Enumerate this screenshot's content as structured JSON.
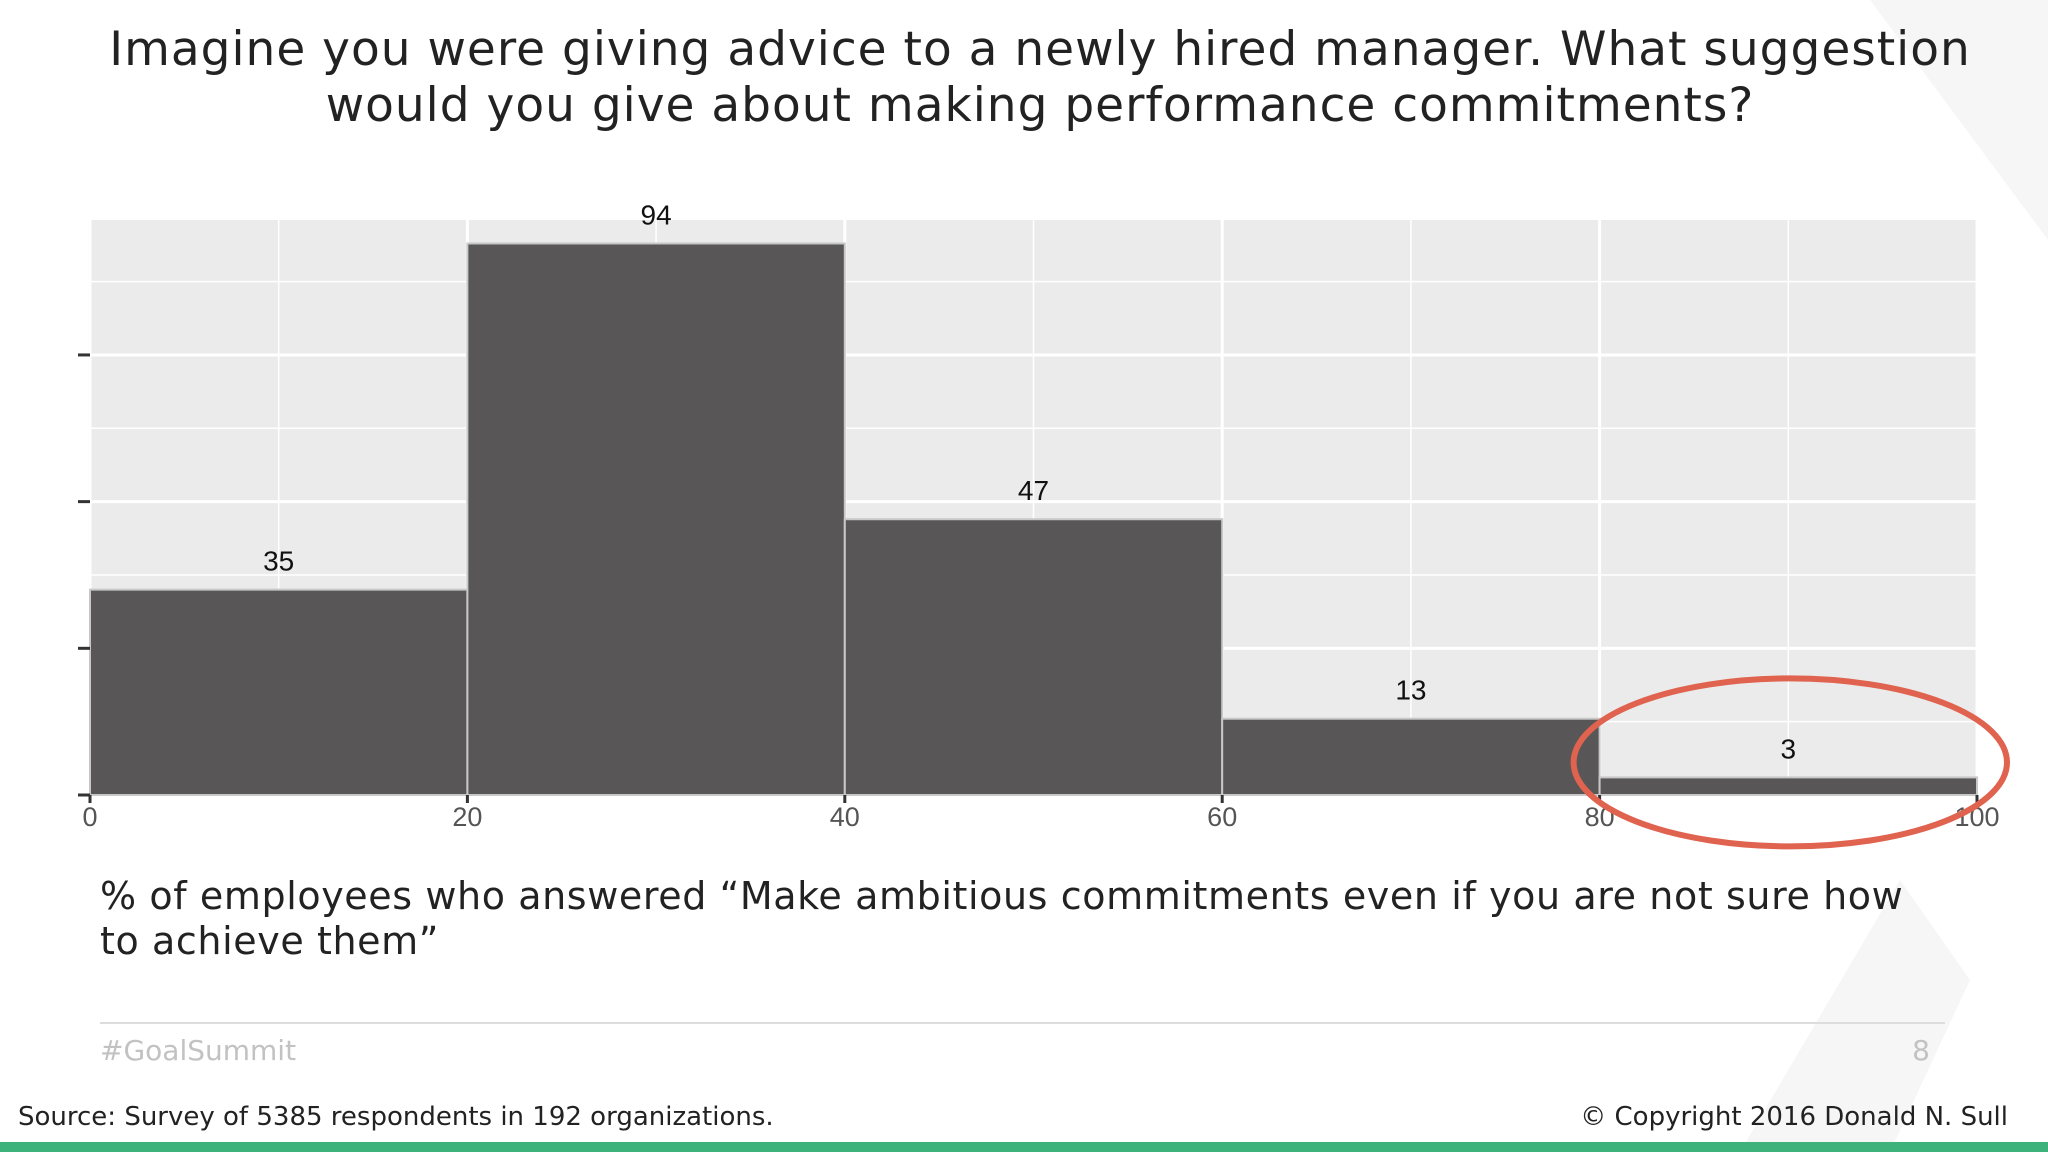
{
  "title_lines": [
    "Imagine you were giving advice to a newly hired manager. What suggestion",
    "would you give about making performance commitments?"
  ],
  "caption_lines": [
    "% of employees who answered “Make ambitious commitments even if you are not sure how",
    "to achieve them”"
  ],
  "footer": {
    "hashtag": "#GoalSummit",
    "page_number": "8",
    "source": "Source: Survey of 5385 respondents in 192 organizations.",
    "copyright": "© Copyright 2016 Donald N. Sull"
  },
  "colors": {
    "bar": "#585657",
    "panel": "#ebebeb",
    "grid": "#ffffff",
    "highlight": "#e0634f",
    "accent_bar": "#3db27a"
  },
  "chart_data": {
    "type": "bar",
    "x_ticks": [
      0,
      20,
      40,
      60,
      80,
      100
    ],
    "xlim": [
      0,
      100
    ],
    "ylim": [
      0,
      98
    ],
    "bins": [
      {
        "x0": 0,
        "x1": 20,
        "value": 35
      },
      {
        "x0": 20,
        "x1": 40,
        "value": 94
      },
      {
        "x0": 40,
        "x1": 60,
        "value": 47
      },
      {
        "x0": 60,
        "x1": 80,
        "value": 13
      },
      {
        "x0": 80,
        "x1": 100,
        "value": 3
      }
    ],
    "highlighted_bin": 4
  }
}
